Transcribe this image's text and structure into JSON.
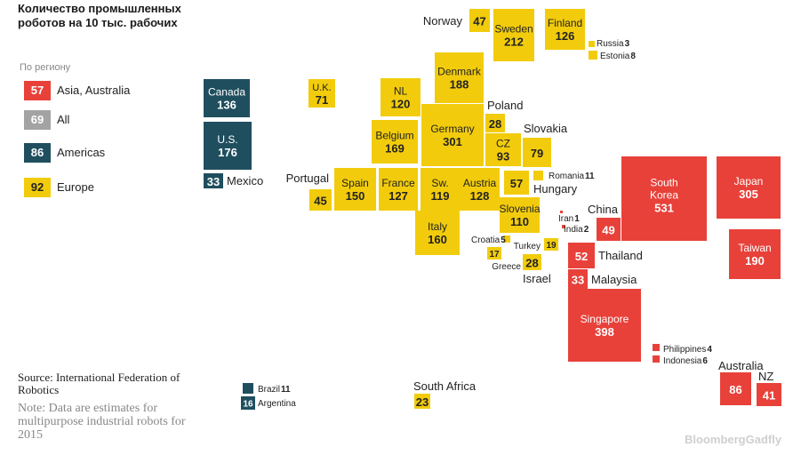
{
  "title": "Количество промышленных роботов на 10 тыс. рабочих",
  "legend": {
    "title": "По региону",
    "items": [
      {
        "value": "57",
        "label": "Asia, Australia",
        "color": "#e8413a"
      },
      {
        "value": "69",
        "label": "All",
        "color": "#a3a3a3"
      },
      {
        "value": "86",
        "label": "Americas",
        "color": "#1f4f5f"
      },
      {
        "value": "92",
        "label": "Europe",
        "color": "#f2cc0c"
      }
    ]
  },
  "source": "Source: International Federation of Robotics",
  "note": "Note: Data are estimates for multipurpose industrial robots for 2015",
  "credit": "BloombergGadfly",
  "chart_data": {
    "type": "treemap",
    "title": "Количество промышленных роботов на 10 тыс. рабочих",
    "unit": "роботов на 10 тыс. рабочих",
    "regions": {
      "Asia, Australia": 57,
      "All": 69,
      "Americas": 86,
      "Europe": 92
    },
    "countries": [
      {
        "name": "Canada",
        "value": 136,
        "region": "Americas"
      },
      {
        "name": "U.S.",
        "value": 176,
        "region": "Americas"
      },
      {
        "name": "Mexico",
        "value": 33,
        "region": "Americas"
      },
      {
        "name": "Brazil",
        "value": 11,
        "region": "Americas"
      },
      {
        "name": "Argentina",
        "value": 16,
        "region": "Americas"
      },
      {
        "name": "Norway",
        "value": 47,
        "region": "Europe"
      },
      {
        "name": "Sweden",
        "value": 212,
        "region": "Europe"
      },
      {
        "name": "Finland",
        "value": 126,
        "region": "Europe"
      },
      {
        "name": "Russia",
        "value": 3,
        "region": "Europe"
      },
      {
        "name": "Estonia",
        "value": 8,
        "region": "Europe"
      },
      {
        "name": "Denmark",
        "value": 188,
        "region": "Europe"
      },
      {
        "name": "U.K.",
        "value": 71,
        "region": "Europe"
      },
      {
        "name": "NL",
        "value": 120,
        "region": "Europe"
      },
      {
        "name": "Poland",
        "value": 28,
        "region": "Europe"
      },
      {
        "name": "Germany",
        "value": 301,
        "region": "Europe"
      },
      {
        "name": "Belgium",
        "value": 169,
        "region": "Europe"
      },
      {
        "name": "CZ",
        "value": 93,
        "region": "Europe"
      },
      {
        "name": "Slovakia",
        "value": 79,
        "region": "Europe"
      },
      {
        "name": "Portugal",
        "value": 45,
        "region": "Europe"
      },
      {
        "name": "Spain",
        "value": 150,
        "region": "Europe"
      },
      {
        "name": "France",
        "value": 127,
        "region": "Europe"
      },
      {
        "name": "Sw.",
        "value": 119,
        "region": "Europe"
      },
      {
        "name": "Austria",
        "value": 128,
        "region": "Europe"
      },
      {
        "name": "Hungary",
        "value": 57,
        "region": "Europe"
      },
      {
        "name": "Romania",
        "value": 11,
        "region": "Europe"
      },
      {
        "name": "Slovenia",
        "value": 110,
        "region": "Europe"
      },
      {
        "name": "Italy",
        "value": 160,
        "region": "Europe"
      },
      {
        "name": "Croatia",
        "value": 5,
        "region": "Europe"
      },
      {
        "name": "Greece",
        "value": 17,
        "region": "Europe"
      },
      {
        "name": "Turkey",
        "value": 19,
        "region": "Europe"
      },
      {
        "name": "Israel",
        "value": 28,
        "region": "Europe"
      },
      {
        "name": "South Africa",
        "value": 23,
        "region": "Europe"
      },
      {
        "name": "Iran",
        "value": 1,
        "region": "Asia, Australia"
      },
      {
        "name": "India",
        "value": 2,
        "region": "Asia, Australia"
      },
      {
        "name": "China",
        "value": 49,
        "region": "Asia, Australia"
      },
      {
        "name": "South Korea",
        "value": 531,
        "region": "Asia, Australia"
      },
      {
        "name": "Japan",
        "value": 305,
        "region": "Asia, Australia"
      },
      {
        "name": "Taiwan",
        "value": 190,
        "region": "Asia, Australia"
      },
      {
        "name": "Thailand",
        "value": 52,
        "region": "Asia, Australia"
      },
      {
        "name": "Malaysia",
        "value": 33,
        "region": "Asia, Australia"
      },
      {
        "name": "Singapore",
        "value": 398,
        "region": "Asia, Australia"
      },
      {
        "name": "Philippines",
        "value": 4,
        "region": "Asia, Australia"
      },
      {
        "name": "Indonesia",
        "value": 6,
        "region": "Asia, Australia"
      },
      {
        "name": "Australia",
        "value": 86,
        "region": "Asia, Australia"
      },
      {
        "name": "NZ",
        "value": 41,
        "region": "Asia, Australia"
      }
    ]
  }
}
